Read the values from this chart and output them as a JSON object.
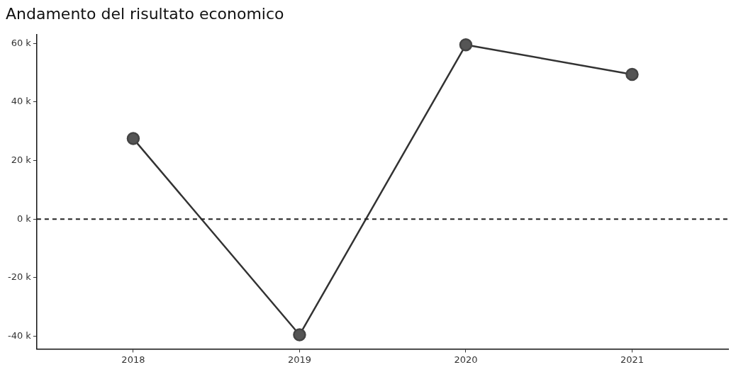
{
  "chart_data": {
    "type": "line",
    "title": "Andamento del risultato economico",
    "x": [
      2018,
      2019,
      2020,
      2021
    ],
    "series": [
      {
        "color": "#333333",
        "values": [
          27500,
          -39500,
          59500,
          49400
        ]
      }
    ],
    "xlim": [
      2017.42,
      2021.58
    ],
    "xticks": [
      2018,
      2019,
      2020,
      2021
    ],
    "ylim": [
      -44300,
      63100
    ],
    "yticks": [
      {
        "value": -40000,
        "label": "-40 k"
      },
      {
        "value": -20000,
        "label": "-20 k"
      },
      {
        "value": 0,
        "label": "0 k"
      },
      {
        "value": 20000,
        "label": "20 k"
      },
      {
        "value": 40000,
        "label": "40 k"
      },
      {
        "value": 60000,
        "label": "60 k"
      }
    ],
    "ref_lines": [
      {
        "axis": "y",
        "value": 0,
        "line_style": "dashed",
        "color": "#222222"
      }
    ],
    "grid": false,
    "legend": false,
    "marker": "circle",
    "line_style": "solid"
  }
}
